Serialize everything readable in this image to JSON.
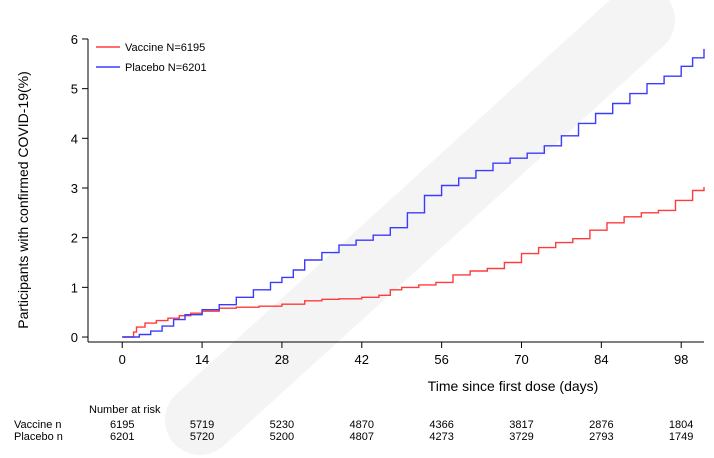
{
  "chart_data": {
    "type": "line",
    "step": true,
    "ylabel": "Participants with confirmed COVID-19(%)",
    "xlabel": "Time since first dose (days)",
    "xticks": [
      0,
      14,
      28,
      42,
      56,
      70,
      84,
      98
    ],
    "yticks": [
      0,
      1,
      2,
      3,
      4,
      5,
      6
    ],
    "xlim": [
      -6,
      102
    ],
    "ylim": [
      -0.1,
      6.1
    ],
    "grid": false,
    "legend_position": "top-left",
    "series": [
      {
        "name": "Vaccine N=6195",
        "color": "#ff3b3b",
        "x": [
          0,
          2,
          2.5,
          4,
          6,
          8,
          10,
          12,
          14,
          17,
          20,
          24,
          28,
          32,
          35,
          38,
          42,
          45,
          47,
          49,
          52,
          55,
          58,
          61,
          64,
          67,
          70,
          73,
          76,
          79,
          82,
          85,
          88,
          91,
          94,
          97,
          100,
          102
        ],
        "y": [
          0,
          0.1,
          0.2,
          0.28,
          0.33,
          0.38,
          0.43,
          0.48,
          0.52,
          0.58,
          0.6,
          0.62,
          0.66,
          0.73,
          0.76,
          0.77,
          0.8,
          0.84,
          0.95,
          1.0,
          1.05,
          1.1,
          1.25,
          1.33,
          1.38,
          1.5,
          1.68,
          1.8,
          1.9,
          1.98,
          2.15,
          2.3,
          2.42,
          2.5,
          2.55,
          2.75,
          2.95,
          3.02
        ]
      },
      {
        "name": "Placebo N=6201",
        "color": "#3b3bff",
        "x": [
          0,
          3,
          5,
          7,
          9,
          11,
          14,
          17,
          20,
          23,
          26,
          28,
          30,
          32,
          35,
          38,
          41,
          44,
          47,
          50,
          53,
          56,
          59,
          62,
          65,
          68,
          71,
          74,
          77,
          80,
          83,
          86,
          89,
          92,
          95,
          98,
          100,
          102
        ],
        "y": [
          0,
          0.05,
          0.12,
          0.22,
          0.35,
          0.45,
          0.55,
          0.65,
          0.8,
          0.95,
          1.1,
          1.2,
          1.35,
          1.55,
          1.7,
          1.85,
          1.95,
          2.05,
          2.2,
          2.5,
          2.85,
          3.05,
          3.2,
          3.35,
          3.5,
          3.6,
          3.7,
          3.85,
          4.05,
          4.3,
          4.5,
          4.7,
          4.9,
          5.1,
          5.25,
          5.45,
          5.62,
          5.8
        ]
      }
    ]
  },
  "at_risk": {
    "title": "Number at risk",
    "rows": [
      {
        "label": "Vaccine n",
        "values": [
          "6195",
          "5719",
          "5230",
          "4870",
          "4366",
          "3817",
          "2876",
          "1804"
        ]
      },
      {
        "label": "Placebo n",
        "values": [
          "6201",
          "5720",
          "5200",
          "4807",
          "4273",
          "3729",
          "2793",
          "1749"
        ]
      }
    ]
  }
}
